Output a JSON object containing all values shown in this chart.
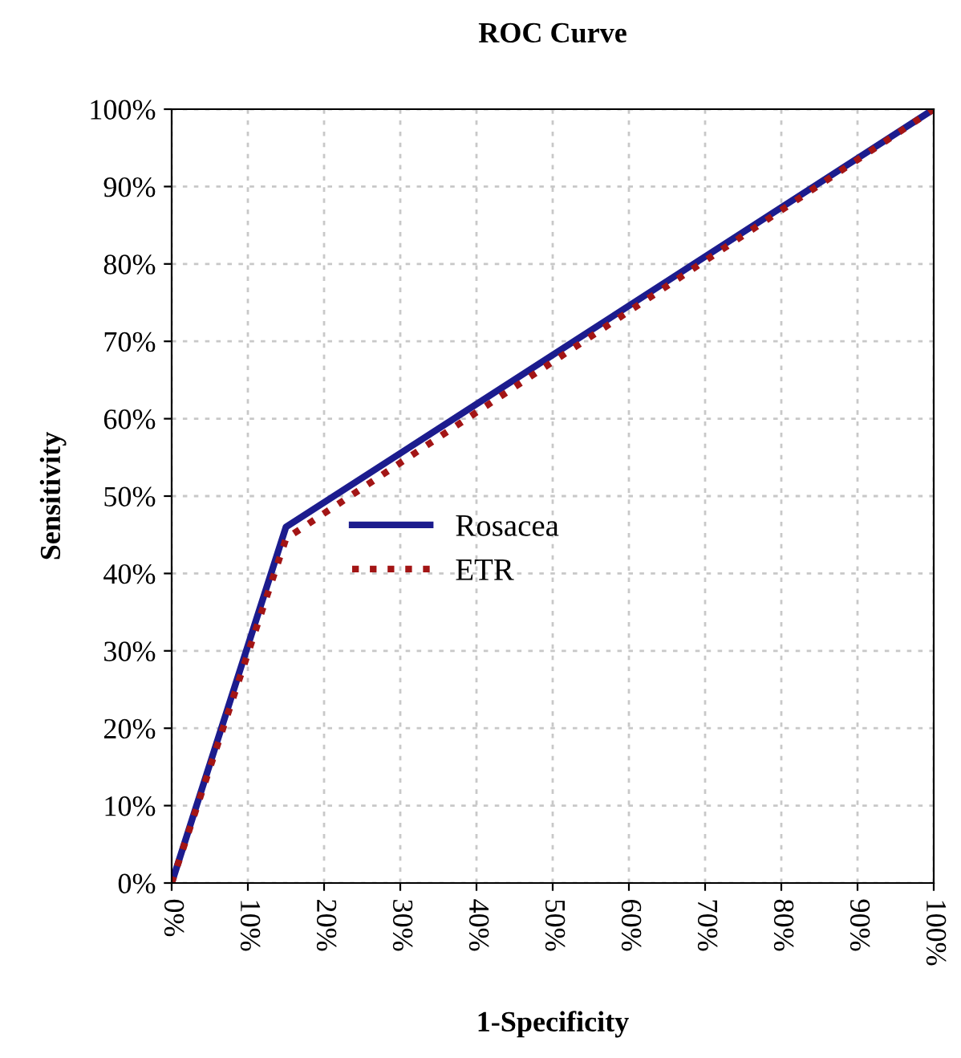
{
  "chart_data": {
    "type": "line",
    "title": "ROC Curve",
    "xlabel": "1-Specificity",
    "ylabel": "Sensitivity",
    "series": [
      {
        "name": "Rosacea",
        "color": "#1c1c8e",
        "x": [
          0,
          15,
          100
        ],
        "values": [
          0,
          46,
          100
        ],
        "line_style": "solid"
      },
      {
        "name": "ETR",
        "color": "#a31515",
        "x": [
          0,
          15,
          100
        ],
        "values": [
          0,
          44.5,
          100
        ],
        "line_style": "dotted"
      }
    ],
    "xlim": [
      0,
      100
    ],
    "ylim": [
      0,
      100
    ],
    "xticks": [
      {
        "value": 0,
        "label": "0%"
      },
      {
        "value": 10,
        "label": "10%"
      },
      {
        "value": 20,
        "label": "20%"
      },
      {
        "value": 30,
        "label": "30%"
      },
      {
        "value": 40,
        "label": "40%"
      },
      {
        "value": 50,
        "label": "50%"
      },
      {
        "value": 60,
        "label": "60%"
      },
      {
        "value": 70,
        "label": "70%"
      },
      {
        "value": 80,
        "label": "80%"
      },
      {
        "value": 90,
        "label": "90%"
      },
      {
        "value": 100,
        "label": "100%"
      }
    ],
    "yticks": [
      {
        "value": 0,
        "label": "0%"
      },
      {
        "value": 10,
        "label": "10%"
      },
      {
        "value": 20,
        "label": "20%"
      },
      {
        "value": 30,
        "label": "30%"
      },
      {
        "value": 40,
        "label": "40%"
      },
      {
        "value": 50,
        "label": "50%"
      },
      {
        "value": 60,
        "label": "60%"
      },
      {
        "value": 70,
        "label": "70%"
      },
      {
        "value": 80,
        "label": "80%"
      },
      {
        "value": 90,
        "label": "90%"
      },
      {
        "value": 100,
        "label": "100%"
      }
    ],
    "grid": true,
    "legend": "center left",
    "marker": "none"
  }
}
